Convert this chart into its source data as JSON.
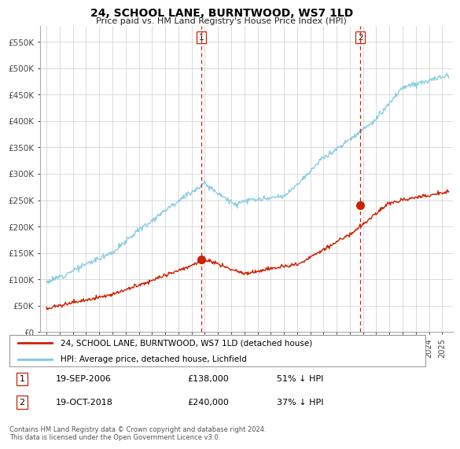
{
  "title": "24, SCHOOL LANE, BURNTWOOD, WS7 1LD",
  "subtitle": "Price paid vs. HM Land Registry's House Price Index (HPI)",
  "ylabel_ticks": [
    "£0",
    "£50K",
    "£100K",
    "£150K",
    "£200K",
    "£250K",
    "£300K",
    "£350K",
    "£400K",
    "£450K",
    "£500K",
    "£550K"
  ],
  "ytick_values": [
    0,
    50000,
    100000,
    150000,
    200000,
    250000,
    300000,
    350000,
    400000,
    450000,
    500000,
    550000
  ],
  "ylim": [
    0,
    580000
  ],
  "xlim_years": [
    1994.5,
    2025.8
  ],
  "hpi_color": "#7ec8e3",
  "price_color": "#cc2200",
  "vline_color": "#cc2200",
  "point1_year": 2006.72,
  "point1_value": 138000,
  "point1_label": "1",
  "point1_date": "19-SEP-2006",
  "point1_price": "£138,000",
  "point1_hpi": "51% ↓ HPI",
  "point2_year": 2018.8,
  "point2_value": 240000,
  "point2_label": "2",
  "point2_date": "19-OCT-2018",
  "point2_price": "£240,000",
  "point2_hpi": "37% ↓ HPI",
  "legend_line1": "24, SCHOOL LANE, BURNTWOOD, WS7 1LD (detached house)",
  "legend_line2": "HPI: Average price, detached house, Lichfield",
  "footer": "Contains HM Land Registry data © Crown copyright and database right 2024.\nThis data is licensed under the Open Government Licence v3.0.",
  "bg_color": "#ffffff",
  "grid_color": "#cccccc"
}
